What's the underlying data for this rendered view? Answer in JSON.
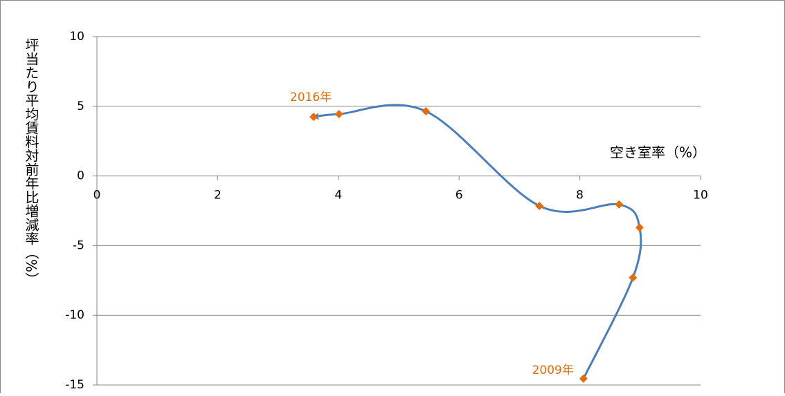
{
  "chart_data": {
    "type": "scatter",
    "x_label": "空き室率（%）",
    "y_label": "坪当たり平均賃料対前年比増減率（%）",
    "annotations": [
      "2009年",
      "2016年"
    ],
    "x": [
      8.06,
      8.88,
      8.99,
      8.65,
      7.33,
      5.45,
      4.01,
      3.59
    ],
    "values": [
      -14.55,
      -7.3,
      -3.7,
      -2.05,
      -2.15,
      4.64,
      4.44,
      4.24
    ],
    "color": "#4a7ebb",
    "marker_color": "#e46c0a",
    "smooth": true,
    "xlim": [
      0,
      10
    ],
    "xticks": [
      0,
      2,
      4,
      6,
      8,
      10
    ],
    "ylim": [
      -15,
      10
    ],
    "yticks": [
      -15,
      -10,
      -5,
      0,
      5,
      10
    ],
    "grid": true
  }
}
